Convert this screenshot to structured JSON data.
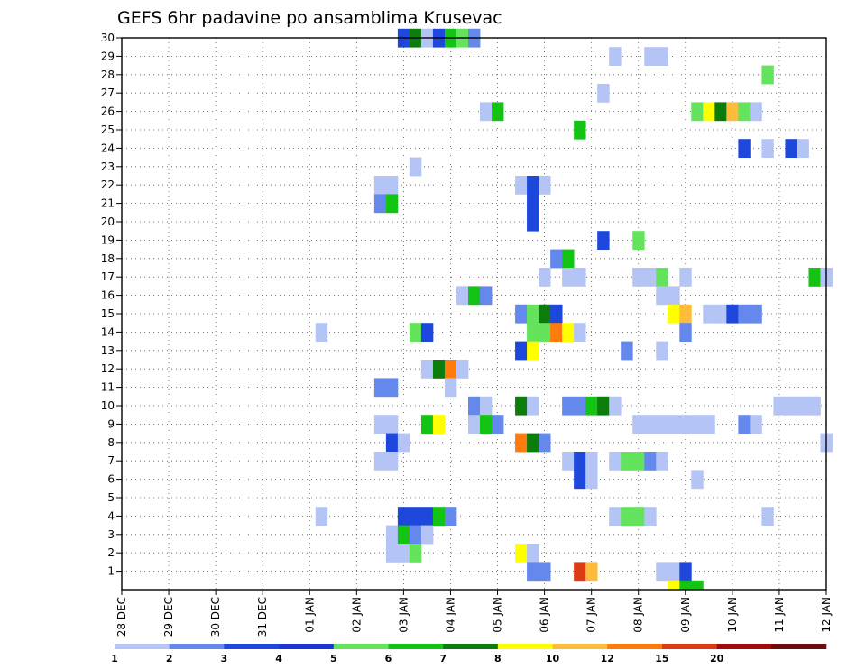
{
  "chart_data": {
    "type": "heatmap",
    "title": "GEFS 6hr padavine po ansamblima Krusevac",
    "x_tick_labels": [
      "28 DEC",
      "29 DEC",
      "30 DEC",
      "31 DEC",
      "01 JAN",
      "02 JAN",
      "03 JAN",
      "04 JAN",
      "05 JAN",
      "06 JAN",
      "07 JAN",
      "08 JAN",
      "09 JAN",
      "10 JAN",
      "11 JAN",
      "12 JAN"
    ],
    "y_tick_labels": [
      "1",
      "2",
      "3",
      "4",
      "5",
      "6",
      "7",
      "8",
      "9",
      "10",
      "11",
      "12",
      "13",
      "14",
      "15",
      "16",
      "17",
      "18",
      "19",
      "20",
      "21",
      "22",
      "23",
      "24",
      "25",
      "26",
      "27",
      "28",
      "29",
      "30"
    ],
    "x_range_days": [
      0,
      15
    ],
    "y_range": [
      0,
      30
    ],
    "grid": true,
    "legend_placement": "bottom",
    "legend_labels": [
      "1",
      "2",
      "3",
      "4",
      "5",
      "6",
      "7",
      "8",
      "10",
      "12",
      "15",
      "20"
    ],
    "legend_colors": [
      "#b4c4f4",
      "#6488ec",
      "#1e48dc",
      "#1c34d4",
      "#64e45c",
      "#14c414",
      "#0c7c0c",
      "#ffff00",
      "#ffbc3c",
      "#ff7c0c",
      "#dc3c14",
      "#a00c0c",
      "#6c0c0c"
    ],
    "cells": [
      {
        "m": 30,
        "d": 6.0,
        "v": 3
      },
      {
        "m": 30,
        "d": 6.25,
        "v": 7
      },
      {
        "m": 30,
        "d": 6.5,
        "v": 1
      },
      {
        "m": 30,
        "d": 6.75,
        "v": 3
      },
      {
        "m": 30,
        "d": 7.0,
        "v": 6
      },
      {
        "m": 30,
        "d": 7.25,
        "v": 5
      },
      {
        "m": 30,
        "d": 7.5,
        "v": 2
      },
      {
        "m": 29,
        "d": 10.5,
        "v": 1
      },
      {
        "m": 29,
        "d": 11.25,
        "v": 1
      },
      {
        "m": 29,
        "d": 11.5,
        "v": 1
      },
      {
        "m": 28,
        "d": 13.75,
        "v": 5
      },
      {
        "m": 27,
        "d": 10.25,
        "v": 1
      },
      {
        "m": 26,
        "d": 7.75,
        "v": 1
      },
      {
        "m": 26,
        "d": 8.0,
        "v": 6
      },
      {
        "m": 26,
        "d": 12.25,
        "v": 5
      },
      {
        "m": 26,
        "d": 12.5,
        "v": 8
      },
      {
        "m": 26,
        "d": 12.75,
        "v": 7
      },
      {
        "m": 26,
        "d": 13.0,
        "v": 10
      },
      {
        "m": 26,
        "d": 13.25,
        "v": 5
      },
      {
        "m": 26,
        "d": 13.5,
        "v": 1
      },
      {
        "m": 25,
        "d": 9.75,
        "v": 6
      },
      {
        "m": 24,
        "d": 13.25,
        "v": 3
      },
      {
        "m": 24,
        "d": 13.75,
        "v": 1
      },
      {
        "m": 24,
        "d": 14.25,
        "v": 3
      },
      {
        "m": 24,
        "d": 14.5,
        "v": 1
      },
      {
        "m": 23,
        "d": 6.25,
        "v": 1
      },
      {
        "m": 22,
        "d": 5.5,
        "v": 1
      },
      {
        "m": 22,
        "d": 5.75,
        "v": 1
      },
      {
        "m": 22,
        "d": 8.5,
        "v": 1
      },
      {
        "m": 22,
        "d": 8.75,
        "v": 3
      },
      {
        "m": 22,
        "d": 9.0,
        "v": 1
      },
      {
        "m": 21,
        "d": 5.5,
        "v": 2
      },
      {
        "m": 21,
        "d": 5.75,
        "v": 6
      },
      {
        "m": 21,
        "d": 8.75,
        "v": 3
      },
      {
        "m": 20,
        "d": 8.75,
        "v": 3
      },
      {
        "m": 19,
        "d": 10.25,
        "v": 3
      },
      {
        "m": 19,
        "d": 11.0,
        "v": 5
      },
      {
        "m": 18,
        "d": 9.25,
        "v": 2
      },
      {
        "m": 18,
        "d": 9.5,
        "v": 6
      },
      {
        "m": 17,
        "d": 9.0,
        "v": 1
      },
      {
        "m": 17,
        "d": 9.5,
        "v": 1
      },
      {
        "m": 17,
        "d": 9.75,
        "v": 1
      },
      {
        "m": 17,
        "d": 11.0,
        "v": 1
      },
      {
        "m": 17,
        "d": 11.25,
        "v": 1
      },
      {
        "m": 17,
        "d": 11.5,
        "v": 5
      },
      {
        "m": 17,
        "d": 12.0,
        "v": 1
      },
      {
        "m": 17,
        "d": 14.75,
        "v": 6
      },
      {
        "m": 17,
        "d": 15.0,
        "v": 1
      },
      {
        "m": 16,
        "d": 7.25,
        "v": 1
      },
      {
        "m": 16,
        "d": 7.5,
        "v": 6
      },
      {
        "m": 16,
        "d": 7.75,
        "v": 2
      },
      {
        "m": 16,
        "d": 11.5,
        "v": 1
      },
      {
        "m": 16,
        "d": 11.75,
        "v": 1
      },
      {
        "m": 15,
        "d": 8.5,
        "v": 2
      },
      {
        "m": 15,
        "d": 8.75,
        "v": 5
      },
      {
        "m": 15,
        "d": 9.0,
        "v": 7
      },
      {
        "m": 15,
        "d": 9.25,
        "v": 3
      },
      {
        "m": 15,
        "d": 11.75,
        "v": 8
      },
      {
        "m": 15,
        "d": 12.0,
        "v": 10
      },
      {
        "m": 15,
        "d": 12.5,
        "v": 1
      },
      {
        "m": 15,
        "d": 12.75,
        "v": 1
      },
      {
        "m": 15,
        "d": 13.0,
        "v": 3
      },
      {
        "m": 15,
        "d": 13.25,
        "v": 2
      },
      {
        "m": 15,
        "d": 13.5,
        "v": 2
      },
      {
        "m": 14,
        "d": 4.25,
        "v": 1
      },
      {
        "m": 14,
        "d": 6.25,
        "v": 5
      },
      {
        "m": 14,
        "d": 6.5,
        "v": 3
      },
      {
        "m": 14,
        "d": 8.75,
        "v": 5
      },
      {
        "m": 14,
        "d": 9.0,
        "v": 5
      },
      {
        "m": 14,
        "d": 9.25,
        "v": 12
      },
      {
        "m": 14,
        "d": 9.5,
        "v": 8
      },
      {
        "m": 14,
        "d": 9.75,
        "v": 1
      },
      {
        "m": 14,
        "d": 12.0,
        "v": 2
      },
      {
        "m": 13,
        "d": 8.5,
        "v": 3
      },
      {
        "m": 13,
        "d": 8.75,
        "v": 8
      },
      {
        "m": 13,
        "d": 10.75,
        "v": 2
      },
      {
        "m": 13,
        "d": 11.5,
        "v": 1
      },
      {
        "m": 12,
        "d": 6.5,
        "v": 1
      },
      {
        "m": 12,
        "d": 6.75,
        "v": 7
      },
      {
        "m": 12,
        "d": 7.0,
        "v": 12
      },
      {
        "m": 12,
        "d": 7.25,
        "v": 1
      },
      {
        "m": 11,
        "d": 5.5,
        "v": 2
      },
      {
        "m": 11,
        "d": 5.75,
        "v": 2
      },
      {
        "m": 11,
        "d": 7.0,
        "v": 1
      },
      {
        "m": 10,
        "d": 7.5,
        "v": 2
      },
      {
        "m": 10,
        "d": 7.75,
        "v": 1
      },
      {
        "m": 10,
        "d": 8.5,
        "v": 7
      },
      {
        "m": 10,
        "d": 8.75,
        "v": 1
      },
      {
        "m": 10,
        "d": 9.5,
        "v": 2
      },
      {
        "m": 10,
        "d": 9.75,
        "v": 2
      },
      {
        "m": 10,
        "d": 10.0,
        "v": 6
      },
      {
        "m": 10,
        "d": 10.25,
        "v": 7
      },
      {
        "m": 10,
        "d": 10.5,
        "v": 1
      },
      {
        "m": 10,
        "d": 14.0,
        "v": 1
      },
      {
        "m": 10,
        "d": 14.25,
        "v": 1
      },
      {
        "m": 10,
        "d": 14.5,
        "v": 1
      },
      {
        "m": 10,
        "d": 14.75,
        "v": 1
      },
      {
        "m": 9,
        "d": 5.5,
        "v": 1
      },
      {
        "m": 9,
        "d": 5.75,
        "v": 1
      },
      {
        "m": 9,
        "d": 6.5,
        "v": 6
      },
      {
        "m": 9,
        "d": 6.75,
        "v": 8
      },
      {
        "m": 9,
        "d": 7.5,
        "v": 1
      },
      {
        "m": 9,
        "d": 7.75,
        "v": 6
      },
      {
        "m": 9,
        "d": 8.0,
        "v": 2
      },
      {
        "m": 9,
        "d": 11.0,
        "v": 1
      },
      {
        "m": 9,
        "d": 11.25,
        "v": 1
      },
      {
        "m": 9,
        "d": 11.5,
        "v": 1
      },
      {
        "m": 9,
        "d": 11.75,
        "v": 1
      },
      {
        "m": 9,
        "d": 12.0,
        "v": 1
      },
      {
        "m": 9,
        "d": 12.25,
        "v": 1
      },
      {
        "m": 9,
        "d": 12.5,
        "v": 1
      },
      {
        "m": 9,
        "d": 13.25,
        "v": 2
      },
      {
        "m": 9,
        "d": 13.5,
        "v": 1
      },
      {
        "m": 8,
        "d": 5.75,
        "v": 3
      },
      {
        "m": 8,
        "d": 6.0,
        "v": 1
      },
      {
        "m": 8,
        "d": 8.5,
        "v": 12
      },
      {
        "m": 8,
        "d": 8.75,
        "v": 7
      },
      {
        "m": 8,
        "d": 9.0,
        "v": 2
      },
      {
        "m": 8,
        "d": 15.0,
        "v": 1
      },
      {
        "m": 7,
        "d": 5.5,
        "v": 1
      },
      {
        "m": 7,
        "d": 5.75,
        "v": 1
      },
      {
        "m": 7,
        "d": 9.5,
        "v": 1
      },
      {
        "m": 7,
        "d": 9.75,
        "v": 3
      },
      {
        "m": 7,
        "d": 10.0,
        "v": 1
      },
      {
        "m": 7,
        "d": 10.5,
        "v": 1
      },
      {
        "m": 7,
        "d": 10.75,
        "v": 5
      },
      {
        "m": 7,
        "d": 11.0,
        "v": 5
      },
      {
        "m": 7,
        "d": 11.25,
        "v": 2
      },
      {
        "m": 7,
        "d": 11.5,
        "v": 1
      },
      {
        "m": 6,
        "d": 9.75,
        "v": 3
      },
      {
        "m": 6,
        "d": 10.0,
        "v": 1
      },
      {
        "m": 6,
        "d": 12.25,
        "v": 1
      },
      {
        "m": 4,
        "d": 4.25,
        "v": 1
      },
      {
        "m": 4,
        "d": 6.0,
        "v": 3
      },
      {
        "m": 4,
        "d": 6.25,
        "v": 3
      },
      {
        "m": 4,
        "d": 6.5,
        "v": 3
      },
      {
        "m": 4,
        "d": 6.75,
        "v": 6
      },
      {
        "m": 4,
        "d": 7.0,
        "v": 2
      },
      {
        "m": 4,
        "d": 10.5,
        "v": 1
      },
      {
        "m": 4,
        "d": 10.75,
        "v": 5
      },
      {
        "m": 4,
        "d": 11.0,
        "v": 5
      },
      {
        "m": 4,
        "d": 11.25,
        "v": 1
      },
      {
        "m": 4,
        "d": 13.75,
        "v": 1
      },
      {
        "m": 3,
        "d": 5.75,
        "v": 1
      },
      {
        "m": 3,
        "d": 6.0,
        "v": 6
      },
      {
        "m": 3,
        "d": 6.25,
        "v": 2
      },
      {
        "m": 3,
        "d": 6.5,
        "v": 1
      },
      {
        "m": 2,
        "d": 5.75,
        "v": 1
      },
      {
        "m": 2,
        "d": 6.0,
        "v": 1
      },
      {
        "m": 2,
        "d": 6.25,
        "v": 5
      },
      {
        "m": 2,
        "d": 8.5,
        "v": 8
      },
      {
        "m": 2,
        "d": 8.75,
        "v": 1
      },
      {
        "m": 1,
        "d": 8.75,
        "v": 2
      },
      {
        "m": 1,
        "d": 9.0,
        "v": 2
      },
      {
        "m": 1,
        "d": 9.75,
        "v": 15
      },
      {
        "m": 1,
        "d": 10.0,
        "v": 10
      },
      {
        "m": 1,
        "d": 11.5,
        "v": 1
      },
      {
        "m": 1,
        "d": 11.75,
        "v": 1
      },
      {
        "m": 1,
        "d": 12.0,
        "v": 3
      },
      {
        "m": 0.5,
        "d": 11.75,
        "v": 8
      },
      {
        "m": 0.5,
        "d": 12.0,
        "v": 6
      },
      {
        "m": 0.5,
        "d": 12.25,
        "v": 6
      }
    ]
  }
}
